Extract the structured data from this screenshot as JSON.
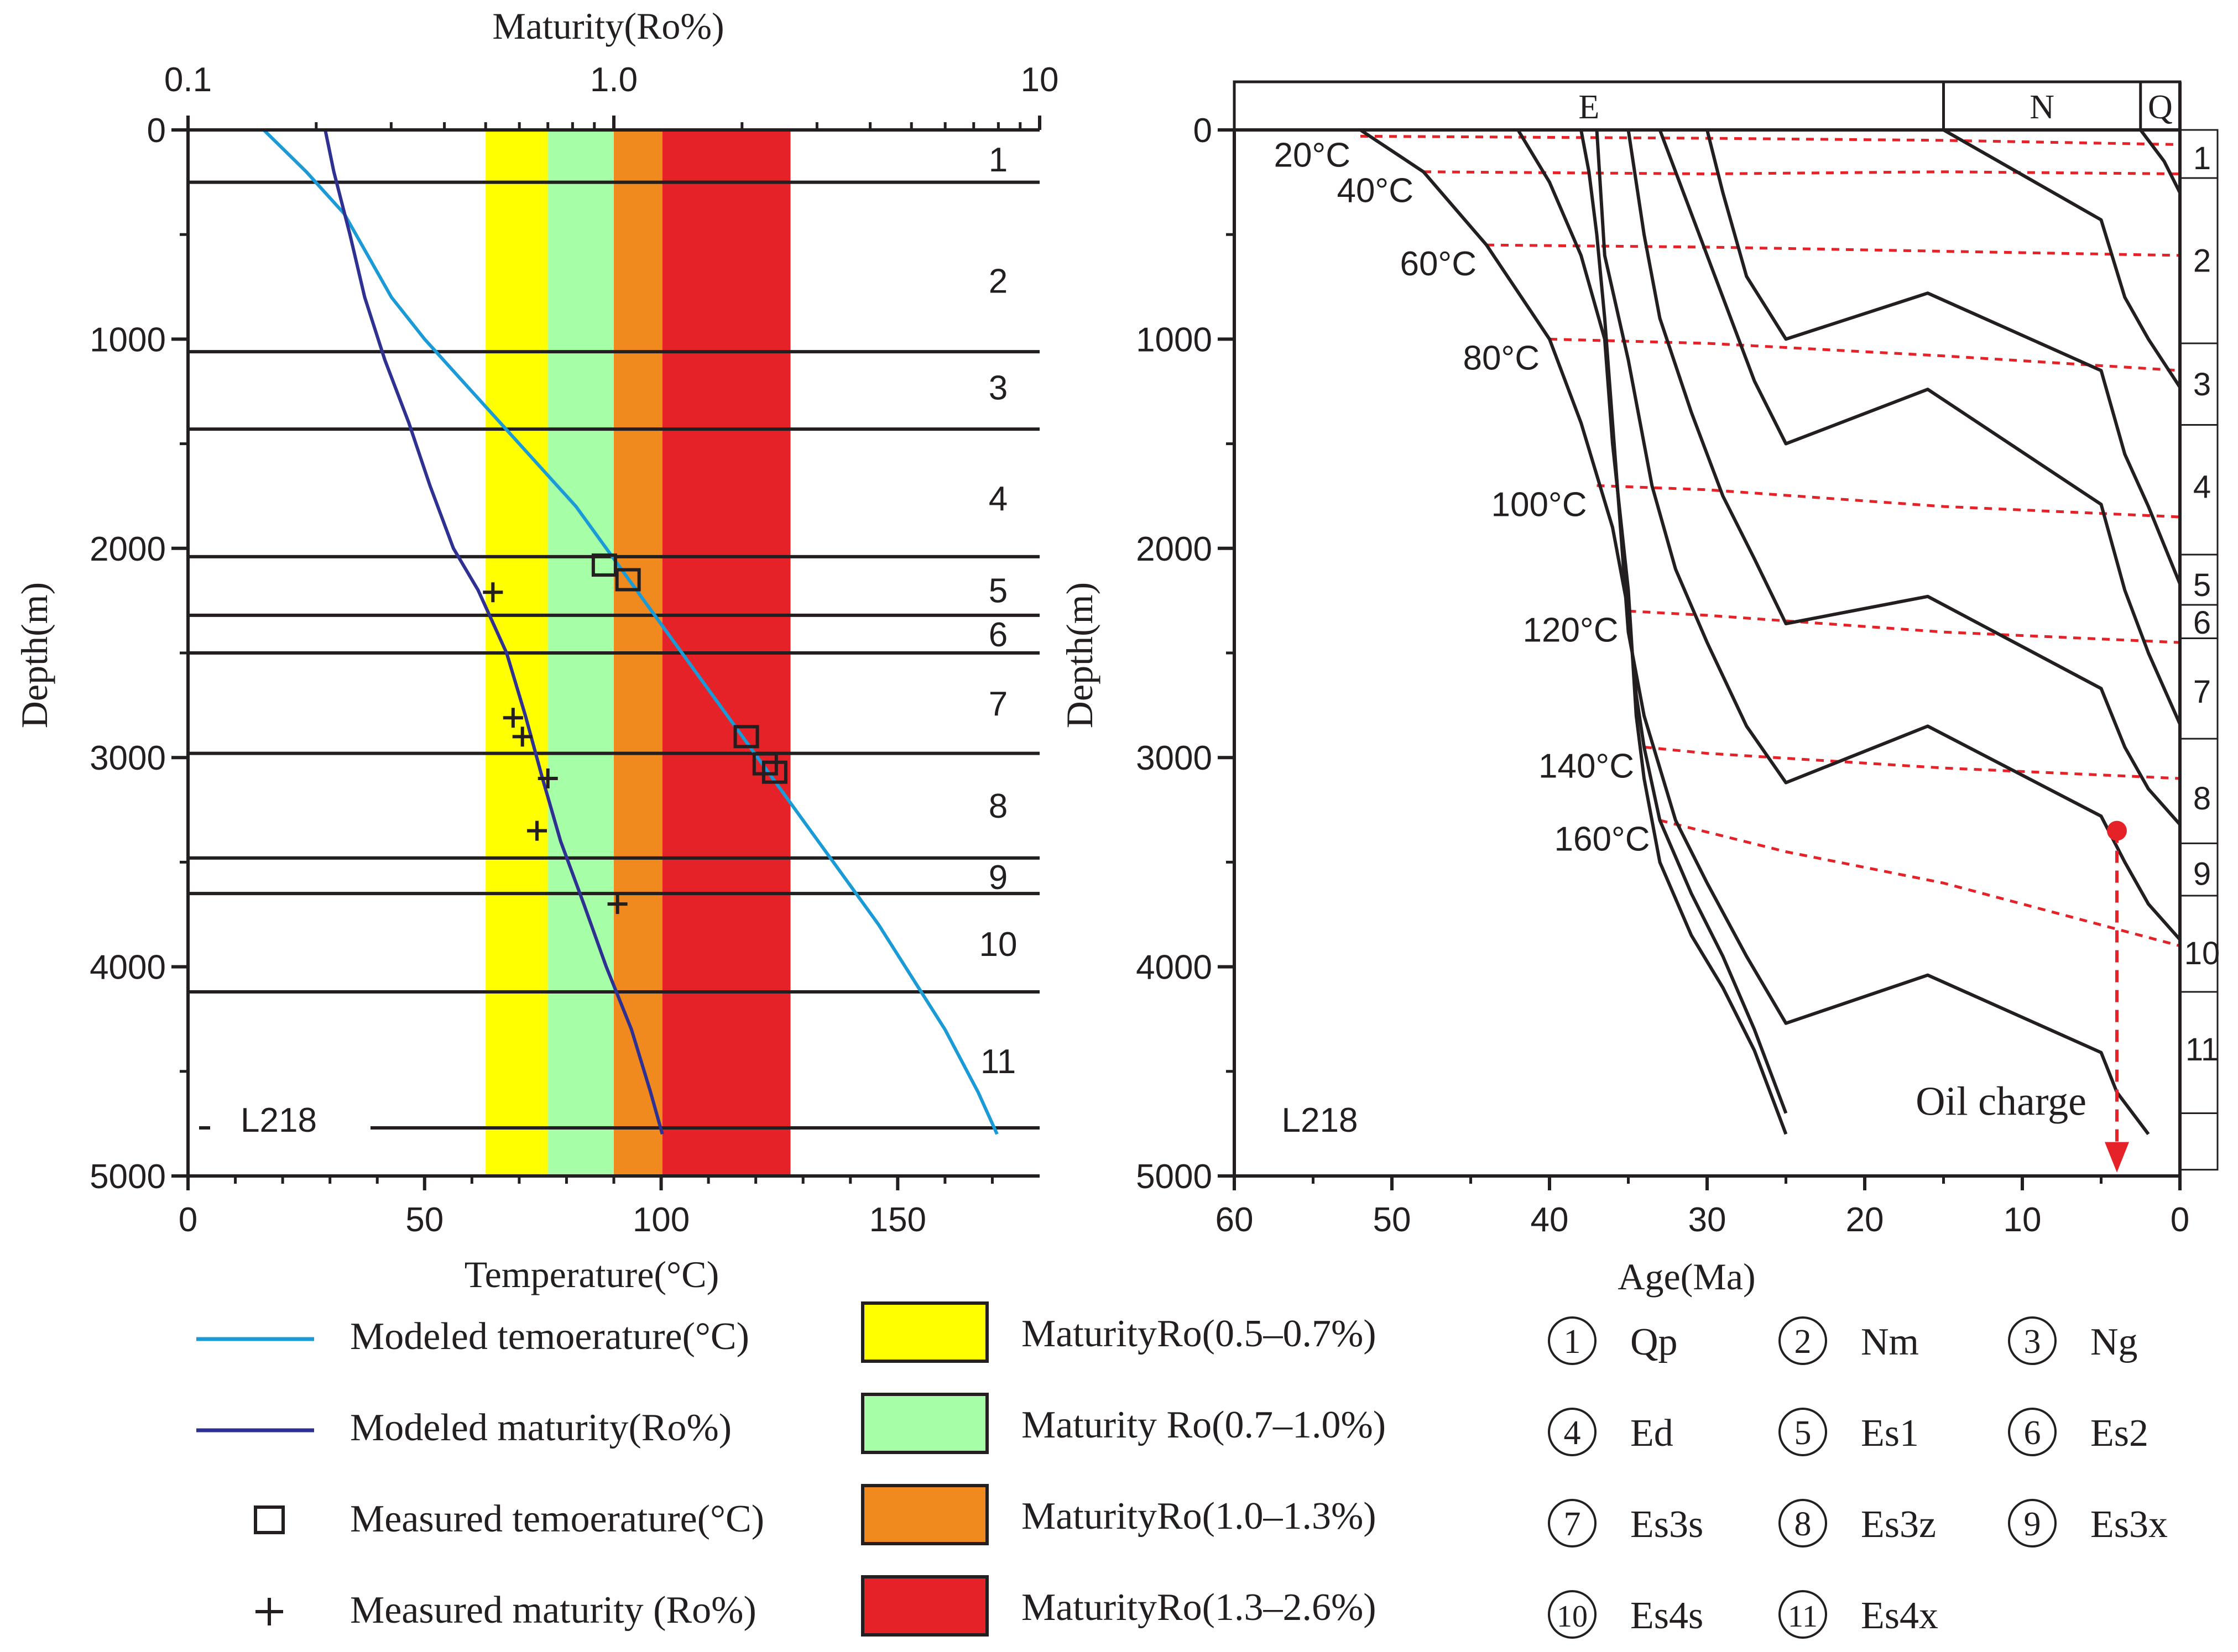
{
  "colors": {
    "axis": "#231f20",
    "temperature_line": "#1a9ad6",
    "maturity_line": "#2e3192",
    "band_yellow": "#ffff00",
    "band_green": "#a6ffa6",
    "band_orange": "#f08a1e",
    "band_red": "#e52228",
    "isotherm": "#e52228",
    "oil_charge": "#e52228"
  },
  "chart_data": [
    {
      "type": "line",
      "title": "",
      "well": "L218",
      "xlabel": "Temperature(°C)",
      "x2label": "Maturity(Ro%)",
      "ylabel": "Depth(m)",
      "xlim": [
        0,
        180
      ],
      "x2lim": [
        0.1,
        10
      ],
      "x2scale": "log",
      "ylim": [
        5000,
        0
      ],
      "x_ticks": [
        "0",
        "50",
        "100",
        "150"
      ],
      "x2_ticks": [
        "0.1",
        "1.0",
        "10"
      ],
      "y_ticks": [
        "0",
        "1000",
        "2000",
        "3000",
        "4000",
        "5000"
      ],
      "maturity_bands": [
        {
          "label": "MaturityRo(0.5–0.7%)",
          "from_ro": 0.5,
          "to_ro": 0.7,
          "color": "#ffff00"
        },
        {
          "label": "Maturity Ro(0.7–1.0%)",
          "from_ro": 0.7,
          "to_ro": 1.0,
          "color": "#a6ffa6"
        },
        {
          "label": "MaturityRo(1.0–1.3%)",
          "from_ro": 1.0,
          "to_ro": 1.3,
          "color": "#f08a1e"
        },
        {
          "label": "MaturityRo(1.3–2.6%)",
          "from_ro": 1.3,
          "to_ro": 2.6,
          "color": "#e52228"
        }
      ],
      "series": [
        {
          "name": "Modeled temoerature(°C)",
          "unit": "temperature",
          "points": [
            [
              16,
              0
            ],
            [
              25,
              200
            ],
            [
              33,
              400
            ],
            [
              38,
              600
            ],
            [
              43,
              800
            ],
            [
              50,
              1000
            ],
            [
              58,
              1200
            ],
            [
              66,
              1400
            ],
            [
              74,
              1600
            ],
            [
              82,
              1800
            ],
            [
              90,
              2050
            ],
            [
              98,
              2300
            ],
            [
              106,
              2550
            ],
            [
              114,
              2800
            ],
            [
              122,
              3050
            ],
            [
              130,
              3300
            ],
            [
              138,
              3550
            ],
            [
              146,
              3800
            ],
            [
              153,
              4050
            ],
            [
              160,
              4300
            ],
            [
              167,
              4600
            ],
            [
              171,
              4800
            ]
          ]
        },
        {
          "name": "Modeled maturity(Ro%)",
          "unit": "maturity",
          "points": [
            [
              0.21,
              0
            ],
            [
              0.22,
              200
            ],
            [
              0.24,
              500
            ],
            [
              0.26,
              800
            ],
            [
              0.29,
              1100
            ],
            [
              0.33,
              1400
            ],
            [
              0.37,
              1700
            ],
            [
              0.42,
              2000
            ],
            [
              0.48,
              2200
            ],
            [
              0.56,
              2500
            ],
            [
              0.62,
              2800
            ],
            [
              0.68,
              3100
            ],
            [
              0.75,
              3400
            ],
            [
              0.85,
              3700
            ],
            [
              0.96,
              4000
            ],
            [
              1.1,
              4300
            ],
            [
              1.22,
              4600
            ],
            [
              1.3,
              4800
            ]
          ]
        }
      ],
      "measured_temperature": [
        [
          88,
          2080
        ],
        [
          93,
          2150
        ],
        [
          118,
          2900
        ],
        [
          122,
          3030
        ],
        [
          124,
          3070
        ]
      ],
      "measured_maturity": [
        [
          0.52,
          2210
        ],
        [
          0.58,
          2810
        ],
        [
          0.61,
          2900
        ],
        [
          0.7,
          3100
        ],
        [
          0.66,
          3350
        ],
        [
          1.02,
          3700
        ]
      ],
      "formation_boundaries_m": [
        250,
        1060,
        1430,
        2040,
        2320,
        2500,
        2980,
        3480,
        3650,
        4120,
        4770
      ],
      "formation_labels": [
        "1",
        "2",
        "3",
        "4",
        "5",
        "6",
        "7",
        "8",
        "9",
        "10",
        "11"
      ],
      "formation_label_depths": [
        140,
        720,
        1230,
        1760,
        2200,
        2410,
        2740,
        3230,
        3570,
        3890,
        4450
      ]
    },
    {
      "type": "line",
      "title": "",
      "well": "L218",
      "xlabel": "Age(Ma)",
      "ylabel": "Depth(m)",
      "xlim": [
        60,
        0
      ],
      "ylim": [
        5000,
        0
      ],
      "x_ticks": [
        "60",
        "50",
        "40",
        "30",
        "20",
        "10",
        "0"
      ],
      "y_ticks": [
        "0",
        "1000",
        "2000",
        "3000",
        "4000",
        "5000"
      ],
      "periods": [
        {
          "label": "E",
          "from": 60,
          "to": 15
        },
        {
          "label": "N",
          "from": 15,
          "to": 2.5
        },
        {
          "label": "Q",
          "from": 2.5,
          "to": 0
        }
      ],
      "burial_curves": [
        [
          [
            52,
            0
          ],
          [
            48,
            200
          ],
          [
            44,
            550
          ],
          [
            40,
            1000
          ],
          [
            38,
            1400
          ],
          [
            36,
            1900
          ],
          [
            35,
            2300
          ],
          [
            34.5,
            2700
          ],
          [
            34,
            2950
          ],
          [
            33,
            3300
          ],
          [
            31,
            3650
          ],
          [
            29,
            3950
          ],
          [
            27,
            4300
          ],
          [
            25,
            4700
          ]
        ],
        [
          [
            42,
            0
          ],
          [
            40,
            250
          ],
          [
            38,
            600
          ],
          [
            36.5,
            1000
          ],
          [
            36,
            1500
          ],
          [
            35,
            2200
          ],
          [
            34.5,
            2800
          ],
          [
            34,
            3100
          ],
          [
            33,
            3500
          ],
          [
            31,
            3850
          ],
          [
            29,
            4100
          ],
          [
            27,
            4400
          ],
          [
            25,
            4800
          ]
        ],
        [
          [
            38,
            0
          ],
          [
            37.5,
            200
          ],
          [
            37,
            500
          ],
          [
            36.5,
            900
          ],
          [
            36,
            1400
          ],
          [
            35.5,
            1900
          ],
          [
            35,
            2400
          ],
          [
            34,
            2800
          ],
          [
            33,
            3050
          ],
          [
            32,
            3300
          ],
          [
            30,
            3600
          ],
          [
            27.5,
            3950
          ],
          [
            25,
            4270
          ],
          [
            16,
            4040
          ],
          [
            5,
            4410
          ],
          [
            4,
            4600
          ],
          [
            2,
            4800
          ]
        ],
        [
          [
            37,
            0
          ],
          [
            36.5,
            600
          ],
          [
            35,
            1100
          ],
          [
            33.5,
            1700
          ],
          [
            32,
            2100
          ],
          [
            30,
            2450
          ],
          [
            27.5,
            2850
          ],
          [
            25,
            3120
          ],
          [
            16,
            2850
          ],
          [
            5,
            3280
          ],
          [
            3.5,
            3500
          ],
          [
            2,
            3700
          ],
          [
            0,
            3870
          ]
        ],
        [
          [
            35,
            0
          ],
          [
            34,
            500
          ],
          [
            33,
            900
          ],
          [
            31,
            1350
          ],
          [
            29,
            1750
          ],
          [
            27,
            2050
          ],
          [
            25,
            2360
          ],
          [
            16,
            2230
          ],
          [
            5,
            2670
          ],
          [
            3.5,
            2950
          ],
          [
            2,
            3150
          ],
          [
            0,
            3320
          ]
        ],
        [
          [
            33,
            0
          ],
          [
            31,
            400
          ],
          [
            29,
            800
          ],
          [
            27,
            1200
          ],
          [
            25,
            1500
          ],
          [
            16,
            1240
          ],
          [
            5,
            1790
          ],
          [
            3.5,
            2200
          ],
          [
            2,
            2500
          ],
          [
            0,
            2840
          ]
        ],
        [
          [
            30,
            0
          ],
          [
            29,
            300
          ],
          [
            27.5,
            700
          ],
          [
            25,
            1000
          ],
          [
            16,
            780
          ],
          [
            5,
            1150
          ],
          [
            3.5,
            1550
          ],
          [
            2,
            1800
          ],
          [
            0,
            2170
          ]
        ],
        [
          [
            15,
            0
          ],
          [
            5,
            430
          ],
          [
            3.5,
            800
          ],
          [
            2,
            1000
          ],
          [
            0,
            1230
          ]
        ],
        [
          [
            2.5,
            0
          ],
          [
            1,
            150
          ],
          [
            0,
            300
          ]
        ]
      ],
      "isotherms": [
        {
          "label": "20°C",
          "points": [
            [
              52,
              30
            ],
            [
              30,
              40
            ],
            [
              15,
              50
            ],
            [
              0,
              70
            ]
          ]
        },
        {
          "label": "40°C",
          "points": [
            [
              48,
              200
            ],
            [
              30,
              210
            ],
            [
              15,
              200
            ],
            [
              0,
              210
            ]
          ]
        },
        {
          "label": "60°C",
          "points": [
            [
              44,
              550
            ],
            [
              30,
              560
            ],
            [
              15,
              580
            ],
            [
              0,
              600
            ]
          ]
        },
        {
          "label": "80°C",
          "points": [
            [
              40,
              1000
            ],
            [
              30,
              1020
            ],
            [
              15,
              1080
            ],
            [
              0,
              1150
            ]
          ]
        },
        {
          "label": "100°C",
          "points": [
            [
              37,
              1700
            ],
            [
              30,
              1720
            ],
            [
              15,
              1800
            ],
            [
              0,
              1850
            ]
          ]
        },
        {
          "label": "120°C",
          "points": [
            [
              35,
              2300
            ],
            [
              30,
              2320
            ],
            [
              15,
              2400
            ],
            [
              0,
              2450
            ]
          ]
        },
        {
          "label": "140°C",
          "points": [
            [
              34,
              2950
            ],
            [
              30,
              2980
            ],
            [
              15,
              3050
            ],
            [
              0,
              3100
            ]
          ]
        },
        {
          "label": "160°C",
          "points": [
            [
              33,
              3300
            ],
            [
              25,
              3450
            ],
            [
              15,
              3600
            ],
            [
              0,
              3900
            ]
          ]
        }
      ],
      "oil_charge": {
        "label": "Oil charge",
        "age_ma": 4,
        "from_depth_m": 3350,
        "to_depth_m": 4970
      },
      "formation_boundaries_m": [
        230,
        1020,
        1410,
        2030,
        2270,
        2430,
        2910,
        3410,
        3660,
        4120,
        4700
      ],
      "formation_labels": [
        "1",
        "2",
        "3",
        "4",
        "5",
        "6",
        "7",
        "8",
        "9",
        "10",
        "11"
      ],
      "formation_label_depths": [
        130,
        620,
        1210,
        1700,
        2170,
        2350,
        2680,
        3190,
        3550,
        3930,
        4390
      ]
    }
  ],
  "legend": {
    "lines": [
      {
        "label": "Modeled temoerature(°C)",
        "symbol": "line",
        "color": "#1a9ad6"
      },
      {
        "label": "Modeled maturity(Ro%)",
        "symbol": "line",
        "color": "#2e3192"
      },
      {
        "label": "Measured temoerature(°C)",
        "symbol": "square"
      },
      {
        "label": "Measured maturity (Ro%)",
        "symbol": "plus"
      }
    ],
    "bands": [
      {
        "label": "MaturityRo(0.5–0.7%)",
        "color": "#ffff00"
      },
      {
        "label": "Maturity Ro(0.7–1.0%)",
        "color": "#a6ffa6"
      },
      {
        "label": "MaturityRo(1.0–1.3%)",
        "color": "#f08a1e"
      },
      {
        "label": "MaturityRo(1.3–2.6%)",
        "color": "#e52228"
      }
    ],
    "formations": [
      {
        "num": "1",
        "name": "Qp"
      },
      {
        "num": "2",
        "name": "Nm"
      },
      {
        "num": "3",
        "name": "Ng"
      },
      {
        "num": "4",
        "name": "Ed"
      },
      {
        "num": "5",
        "name": "Es1"
      },
      {
        "num": "6",
        "name": "Es2"
      },
      {
        "num": "7",
        "name": "Es3s"
      },
      {
        "num": "8",
        "name": "Es3z"
      },
      {
        "num": "9",
        "name": "Es3x"
      },
      {
        "num": "10",
        "name": "Es4s"
      },
      {
        "num": "11",
        "name": "Es4x"
      }
    ]
  }
}
